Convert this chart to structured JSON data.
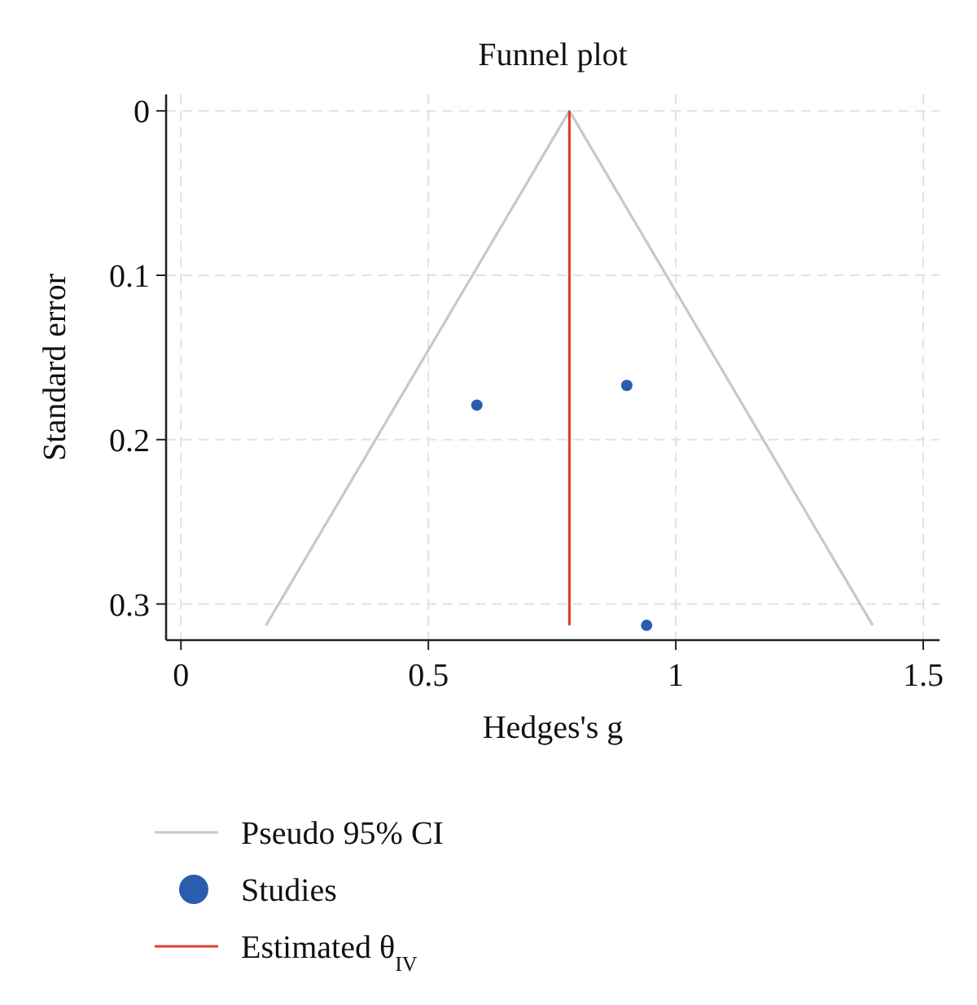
{
  "chart_data": {
    "type": "scatter",
    "title": "Funnel plot",
    "xlabel": "Hedges's g",
    "ylabel": "Standard error",
    "xlim": [
      -0.03,
      1.533
    ],
    "xticks": [
      0,
      0.5,
      1,
      1.5
    ],
    "ylim": [
      0.322,
      -0.01
    ],
    "yticks": [
      0,
      0.1,
      0.2,
      0.3
    ],
    "grid": true,
    "legend": "bottom",
    "marker": "circle",
    "series": [
      {
        "name": "Pseudo 95% CI",
        "type": "line",
        "color": "#c8c8c8",
        "x": [
          0.172,
          0.785,
          1.398
        ],
        "values": [
          0.313,
          0,
          0.313
        ],
        "marker": "none",
        "line_style": "solid"
      },
      {
        "name": "Studies",
        "type": "scatter",
        "color": "#2a5db0",
        "x": [
          0.598,
          0.901,
          0.941
        ],
        "values": [
          0.179,
          0.167,
          0.313
        ]
      },
      {
        "name": "Estimated θ$_{IV}$",
        "type": "line",
        "color": "#d9412b",
        "x": [
          0.785,
          0.785
        ],
        "values": [
          0,
          0.313
        ],
        "marker": "none",
        "line_style": "solid"
      }
    ]
  }
}
